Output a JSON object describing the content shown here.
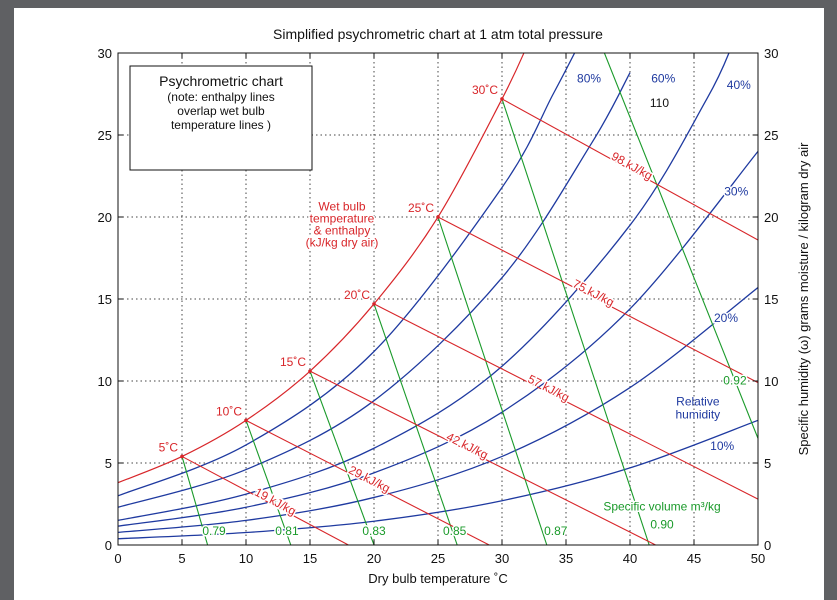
{
  "chart_data": {
    "type": "line",
    "title": "Simplified psychrometric chart at 1 atm total pressure",
    "xlabel": "Dry bulb temperature ˚C",
    "ylabel": "Specific humidity (ω) grams moisture / kilogram dry air",
    "xlim": [
      0,
      50
    ],
    "ylim": [
      0,
      30
    ],
    "x_ticks": [
      "0",
      "5",
      "10",
      "15",
      "20",
      "25",
      "30",
      "35",
      "40",
      "45",
      "50"
    ],
    "y_ticks": [
      "0",
      "5",
      "10",
      "15",
      "20",
      "25",
      "30"
    ],
    "grid": true,
    "legend_box": {
      "line1": "Psychrometric chart",
      "line2": "(note: enthalpy lines",
      "line3": "overlap wet bulb",
      "line4": "temperature lines )"
    },
    "saturation_curve": [
      {
        "x": 0,
        "y": 3.8
      },
      {
        "x": 5,
        "y": 5.4
      },
      {
        "x": 10,
        "y": 7.6
      },
      {
        "x": 15,
        "y": 10.6
      },
      {
        "x": 20,
        "y": 14.7
      },
      {
        "x": 25,
        "y": 20.0
      },
      {
        "x": 30,
        "y": 27.2
      },
      {
        "x": 32,
        "y": 30.5
      }
    ],
    "relative_humidity": {
      "color": "#1f3aa0",
      "title_lines": [
        "Relative",
        "humidity"
      ],
      "series": [
        {
          "label": "80%",
          "points": [
            {
              "x": 0,
              "y": 3.0
            },
            {
              "x": 10,
              "y": 6.1
            },
            {
              "x": 20,
              "y": 11.8
            },
            {
              "x": 30,
              "y": 21.8
            },
            {
              "x": 34,
              "y": 27.5
            },
            {
              "x": 36,
              "y": 30.5
            }
          ]
        },
        {
          "label": "60%",
          "points": [
            {
              "x": 0,
              "y": 2.3
            },
            {
              "x": 10,
              "y": 4.6
            },
            {
              "x": 20,
              "y": 8.8
            },
            {
              "x": 30,
              "y": 16.3
            },
            {
              "x": 37,
              "y": 24.5
            },
            {
              "x": 40,
              "y": 28.8
            }
          ]
        },
        {
          "label": "40%",
          "points": [
            {
              "x": 0,
              "y": 1.5
            },
            {
              "x": 10,
              "y": 3.1
            },
            {
              "x": 20,
              "y": 5.9
            },
            {
              "x": 30,
              "y": 10.9
            },
            {
              "x": 40,
              "y": 19.5
            },
            {
              "x": 46,
              "y": 27.2
            },
            {
              "x": 48,
              "y": 30.5
            }
          ]
        },
        {
          "label": "30%",
          "points": [
            {
              "x": 0,
              "y": 1.15
            },
            {
              "x": 10,
              "y": 2.3
            },
            {
              "x": 20,
              "y": 4.4
            },
            {
              "x": 30,
              "y": 8.1
            },
            {
              "x": 40,
              "y": 14.4
            },
            {
              "x": 50,
              "y": 24.0
            }
          ]
        },
        {
          "label": "20%",
          "points": [
            {
              "x": 0,
              "y": 0.77
            },
            {
              "x": 10,
              "y": 1.5
            },
            {
              "x": 20,
              "y": 2.9
            },
            {
              "x": 30,
              "y": 5.4
            },
            {
              "x": 40,
              "y": 9.6
            },
            {
              "x": 50,
              "y": 15.7
            }
          ]
        },
        {
          "label": "10%",
          "points": [
            {
              "x": 0,
              "y": 0.38
            },
            {
              "x": 10,
              "y": 0.76
            },
            {
              "x": 20,
              "y": 1.45
            },
            {
              "x": 30,
              "y": 2.7
            },
            {
              "x": 40,
              "y": 4.7
            },
            {
              "x": 50,
              "y": 7.6
            }
          ]
        }
      ]
    },
    "wet_bulb_enthalpy": {
      "color": "#d8262a",
      "title_lines": [
        "Wet bulb",
        "temperature",
        "& enthalpy",
        "(kJ/kg dry air)"
      ],
      "series": [
        {
          "temp_label": "5˚C",
          "enthalpy_label": "19 kJ/kg",
          "points": [
            {
              "x": 5,
              "y": 5.4
            },
            {
              "x": 18,
              "y": 0
            }
          ]
        },
        {
          "temp_label": "10˚C",
          "enthalpy_label": "29 kJ/kg",
          "points": [
            {
              "x": 10,
              "y": 7.6
            },
            {
              "x": 29,
              "y": 0
            }
          ]
        },
        {
          "temp_label": "15˚C",
          "enthalpy_label": "42 kJ/kg",
          "points": [
            {
              "x": 15,
              "y": 10.6
            },
            {
              "x": 42,
              "y": 0
            }
          ]
        },
        {
          "temp_label": "20˚C",
          "enthalpy_label": "57 kJ/kg",
          "points": [
            {
              "x": 20,
              "y": 14.7
            },
            {
              "x": 50,
              "y": 2.8
            }
          ]
        },
        {
          "temp_label": "25˚C",
          "enthalpy_label": "75 kJ/kg",
          "points": [
            {
              "x": 25,
              "y": 20.0
            },
            {
              "x": 50,
              "y": 9.9
            }
          ]
        },
        {
          "temp_label": "30˚C",
          "enthalpy_label": "98 kJ/kg",
          "points": [
            {
              "x": 30,
              "y": 27.2
            },
            {
              "x": 50,
              "y": 18.6
            }
          ]
        }
      ],
      "extra_label": "110"
    },
    "specific_volume": {
      "color": "#1a9a2a",
      "title": "Specific volume m³/kg",
      "series": [
        {
          "label": "0.79",
          "points": [
            {
              "x": 5,
              "y": 5.4
            },
            {
              "x": 7.0,
              "y": 0
            }
          ]
        },
        {
          "label": "0.81",
          "points": [
            {
              "x": 10,
              "y": 7.6
            },
            {
              "x": 13.5,
              "y": 0
            }
          ]
        },
        {
          "label": "0.83",
          "points": [
            {
              "x": 15,
              "y": 10.6
            },
            {
              "x": 20.0,
              "y": 0
            }
          ]
        },
        {
          "label": "0.85",
          "points": [
            {
              "x": 20,
              "y": 14.7
            },
            {
              "x": 26.5,
              "y": 0
            }
          ]
        },
        {
          "label": "0.87",
          "points": [
            {
              "x": 25,
              "y": 20.0
            },
            {
              "x": 33.5,
              "y": 0
            }
          ]
        },
        {
          "label": "0.90",
          "points": [
            {
              "x": 30,
              "y": 27.2
            },
            {
              "x": 41.5,
              "y": 0
            }
          ]
        },
        {
          "label": "0.92",
          "points": [
            {
              "x": 38,
              "y": 30
            },
            {
              "x": 50,
              "y": 6.5
            }
          ]
        }
      ]
    }
  }
}
